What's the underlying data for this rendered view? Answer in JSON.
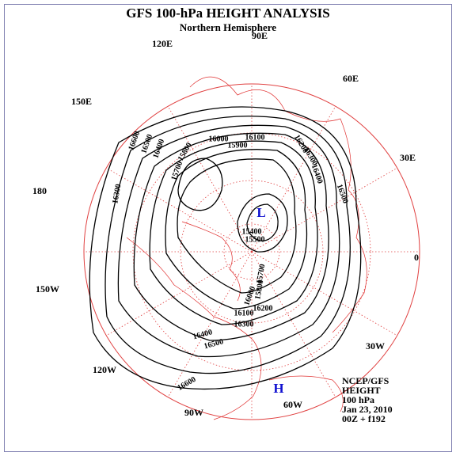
{
  "header": {
    "title": "GFS 100-hPa HEIGHT ANALYSIS",
    "subtitle": "Northern Hemisphere"
  },
  "longitude_labels": [
    "90E",
    "120E",
    "60E",
    "150E",
    "30E",
    "180",
    "0",
    "150W",
    "30W",
    "120W",
    "90W",
    "60W"
  ],
  "pressure_centers": {
    "low": "L",
    "high": "H"
  },
  "contour_labels": [
    "16600",
    "16500",
    "16400",
    "15800",
    "15700",
    "16000",
    "15900",
    "16100",
    "16200",
    "16300",
    "16400",
    "16500",
    "16300",
    "15400",
    "15500",
    "15700",
    "15800",
    "16000",
    "16100",
    "16200",
    "16300",
    "16400",
    "16500",
    "16600"
  ],
  "info": [
    "NCEP/GFS",
    "HEIGHT",
    "100 hPa",
    "Jan 23, 2010",
    "00Z + f192"
  ]
}
